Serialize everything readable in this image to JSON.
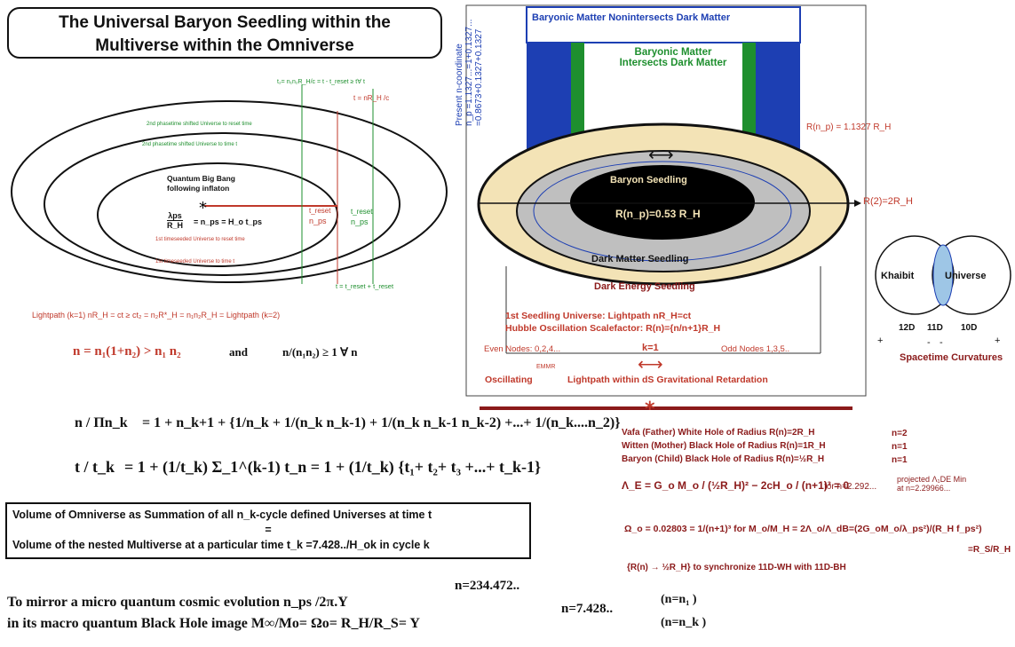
{
  "title": {
    "line1": "The Universal Baryon Seedling within the",
    "line2": "Multiverse within the Omniverse"
  },
  "left_diagram": {
    "t2_label": "t₂= n₁n₂R_H/c = t - t_reset ≥ t∀ t",
    "t_label": "t = nR_H /c",
    "ring_labels": [
      "2nd phasetime shifted Universe to reset time",
      "2nd phasetime shifted Universe to time t",
      "1st timeseeded Universe to reset time",
      "1st timeseeded Universe to time t"
    ],
    "quantum_big_bang": "Quantum Big Bang",
    "following_inflaton": "following inflaton",
    "formula_num": "λps",
    "formula_den": "R_H",
    "formula_rest": "= n_ps = H_o t_ps",
    "t_reset_ps": "t_reset",
    "n_ps_label": "n_ps",
    "t_reset_right": "t_reset",
    "n_ps_right": "n_ps",
    "t_sum": "t = t_reset + t_reset",
    "lightpath": "Lightpath (k=1)  nR_H = ct  ≥  ct₂ = n₂R*_H = n₁n₂R_H = Lightpath (k=2)"
  },
  "n_equation": {
    "left": "n = n₁(1+n₂) > n₁ n₂",
    "and": "and",
    "right": "n/(n₁n₂) ≥ 1 ∀ n"
  },
  "series": {
    "line1_lhs": "n / Πn_k",
    "line1_rhs": "= 1 + n_k+1 + {1/n_k + 1/(n_k n_k-1) + 1/(n_k n_k-1 n_k-2) +...+ 1/(n_k....n_2)}",
    "line2_lhs": "t / t_k",
    "line2_rhs": "= 1 + (1/t_k) Σ_1^(k-1) t_n = 1 + (1/t_k) {t₁+ t₂+  t₃ +...+ t_k-1}"
  },
  "volume_box": {
    "line1": "Volume of Omniverse as Summation of all n_k-cycle defined Universes at time t",
    "equals": "=",
    "line2": "Volume of  the nested Multiverse  at a particular time t_k =7.428../H_ok in cycle k"
  },
  "mirror": {
    "line1_text": "To mirror a micro quantum cosmic evolution  n_ps /2π.Y",
    "line1_exp": "n=234.472..",
    "line1_cond": "(n=n₁ )",
    "line2_text": "in its macro quantum Black Hole image  M∞/Mo= Ωo= R_H/R_S=  Y",
    "line2_exp": "n=7.428..",
    "line2_cond": "(n=n_k )"
  },
  "right_diagram": {
    "top_box": "Baryonic Matter Nonintersects Dark Matter",
    "intersect_line1": "Baryonic Matter",
    "intersect_line2": "Intersects Dark Matter",
    "present_line1": "Present n-coordinate",
    "present_line2": "n_p =1.1327...=1+0.1327...",
    "present_line3": "=0.8673+0.1327+0.1327",
    "r_np": "R(n_p) = 1.1327 R_H",
    "r2": "R(2)=2R_H",
    "arrow_lr": "⟷",
    "baryon_seedling": "Baryon Seedling",
    "r_np_inner": "R(n_p)=0.53 R_H",
    "dark_matter_seedling": "Dark Matter Seedling",
    "dark_energy_seedling": "Dark Energy Seedling",
    "first_seedling": "1st Seedling Universe: Lightpath nR_H=ct",
    "hubble_osc": "Hubble Oscillation Scalefactor: R(n)={n/n+1}R_H",
    "even_nodes": "Even Nodes: 0,2,4...",
    "k1": "k=1",
    "odd_nodes": "Odd Nodes 1,3,5..",
    "emmr": "EMMR",
    "oscillating": "Oscillating",
    "lightpath_ds": "Lightpath within dS Gravitational Retardation"
  },
  "venn": {
    "khaibit": "Khaibit",
    "universe": "Universe",
    "d12": "12D",
    "d11": "11D",
    "d10": "10D",
    "plus_left": "+",
    "minus1": "-",
    "minus2": "-",
    "plus_right": "+",
    "caption": "Spacetime Curvatures"
  },
  "holes": {
    "vafa": "Vafa (Father) White Hole of Radius R(n)=2R_H",
    "vafa_n": "n=2",
    "witten": "Witten (Mother) Black Hole of Radius R(n)=1R_H",
    "witten_n": "n=1",
    "baryon": "Baryon (Child) Black Hole of Radius R(n)=½R_H",
    "baryon_n": "n=1"
  },
  "lambda_eq": {
    "lhs": "Λ_E = G_o M_o / (½R_H)² − 2cH_o / (n+1)³ = 0",
    "cond": "for n=2.292...",
    "projected_line1": "projected Λ₁DE Min",
    "projected_line2": "at n=2.29966..."
  },
  "omega_eq": {
    "text": "Ω_o = 0.02803 = 1/(n+1)³  for  M_o/M_H = 2Λ_o/Λ_dB=(2G_oM_o/λ_ps²)/(R_H f_ps²)",
    "tail": "=R_S/R_H"
  },
  "sync": "{R(n) → ½R_H}  to synchronize 11D-WH with 11D-BH",
  "colors": {
    "red": "#c0392b",
    "green": "#1e8f2e",
    "blue": "#1d3fb3",
    "maroon": "#8b1a1a",
    "tan": "#f3e3b6",
    "grey": "#bfbfbf",
    "venn_blue": "#9ec6e6"
  }
}
